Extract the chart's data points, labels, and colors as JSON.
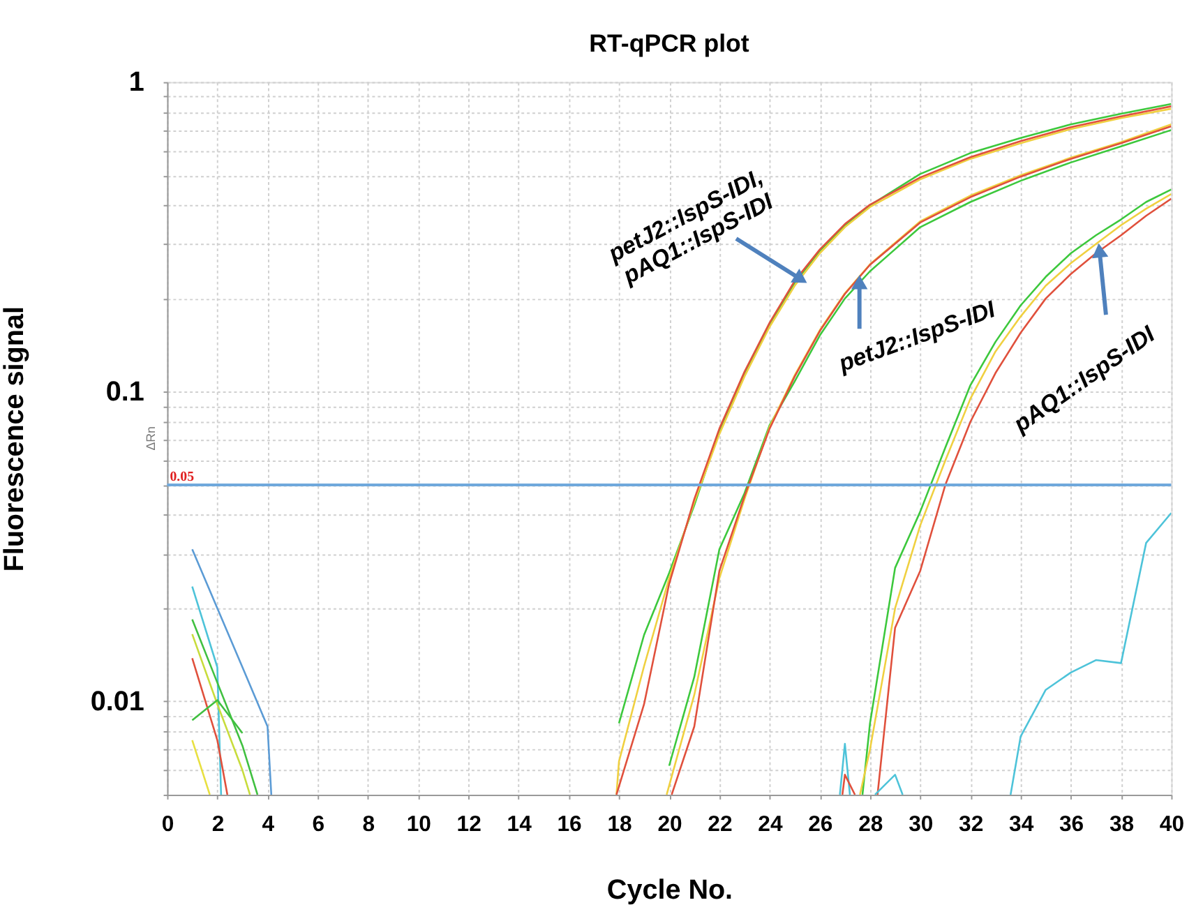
{
  "chart_data": {
    "type": "line",
    "title": "RT-qPCR plot",
    "xlabel": "Cycle No.",
    "ylabel": "Fluorescence signal",
    "xlim": [
      0,
      40
    ],
    "xticks": [
      0,
      2,
      4,
      6,
      8,
      10,
      12,
      14,
      16,
      18,
      20,
      22,
      24,
      26,
      28,
      30,
      32,
      34,
      36,
      38,
      40
    ],
    "ylim": [
      0.005,
      1
    ],
    "log": true,
    "grid": true,
    "legend": false,
    "yticks": [
      {
        "value": 0.005,
        "label": null
      },
      {
        "value": 0.006,
        "label": null
      },
      {
        "value": 0.007,
        "label": null
      },
      {
        "value": 0.008,
        "label": null
      },
      {
        "value": 0.009,
        "label": null
      },
      0.01,
      {
        "value": 0.02,
        "label": null
      },
      {
        "value": 0.03,
        "label": null
      },
      {
        "value": 0.04,
        "label": null
      },
      {
        "value": 0.05,
        "label": null
      },
      {
        "value": 0.06,
        "label": null
      },
      {
        "value": 0.07,
        "label": null
      },
      {
        "value": 0.08,
        "label": null
      },
      {
        "value": 0.09,
        "label": null
      },
      0.1,
      {
        "value": 0.2,
        "label": null
      },
      {
        "value": 0.3,
        "label": null
      },
      {
        "value": 0.4,
        "label": null
      },
      {
        "value": 0.5,
        "label": null
      },
      {
        "value": 0.6,
        "label": null
      },
      {
        "value": 0.7,
        "label": null
      },
      {
        "value": 0.8,
        "label": null
      },
      {
        "value": 0.9,
        "label": null
      },
      1
    ],
    "ref_lines": [
      {
        "axis": "y",
        "value": 0.05,
        "label": "0.05",
        "color": "#6fa8dc"
      }
    ],
    "annotations": [
      "ΔRn",
      {
        "text": "petJ2::IspS-IDI,\npAQ1::IspS-IDI",
        "x": 25.17,
        "y": 0.233
      },
      {
        "text": "petJ2::IspS-IDI",
        "x": 27.58,
        "y": 0.222
      },
      {
        "text": "pAQ1::IspS-IDI",
        "x": 37.15,
        "y": 0.281
      }
    ],
    "series": [
      {
        "color": "#5b9bd5",
        "x": [
          1,
          2,
          3,
          4,
          4.15
        ],
        "values": [
          0.031,
          0.02,
          0.0129,
          0.0083,
          0.005
        ]
      },
      {
        "color": "#4dc3d9",
        "x": [
          1,
          2,
          2.15
        ],
        "values": [
          0.0235,
          0.0129,
          0.005
        ]
      },
      {
        "color": "#40c040",
        "x": [
          1,
          2,
          3,
          3.6
        ],
        "values": [
          0.0184,
          0.0115,
          0.0072,
          0.005
        ]
      },
      {
        "color": "#c8dc3c",
        "x": [
          1,
          2,
          3,
          3.3
        ],
        "values": [
          0.0165,
          0.0098,
          0.006,
          0.005
        ]
      },
      {
        "color": "#e0503c",
        "x": [
          1,
          2,
          2.4
        ],
        "values": [
          0.0138,
          0.0075,
          0.005
        ]
      },
      {
        "color": "#40c040",
        "x": [
          1,
          2,
          3
        ],
        "values": [
          0.0087,
          0.0101,
          0.0079
        ]
      },
      {
        "color": "#e8e040",
        "x": [
          1,
          1.7
        ],
        "values": [
          0.0075,
          0.005
        ]
      },
      {
        "color": "#3cc83c",
        "x": [
          18,
          19,
          20,
          21,
          22,
          23,
          24,
          25,
          26,
          27,
          28,
          30,
          32,
          34,
          36,
          38,
          40
        ],
        "values": [
          0.0085,
          0.0164,
          0.026,
          0.043,
          0.075,
          0.115,
          0.165,
          0.225,
          0.285,
          0.345,
          0.4,
          0.505,
          0.59,
          0.66,
          0.73,
          0.79,
          0.85
        ]
      },
      {
        "color": "#f0d040",
        "x": [
          17.9,
          18,
          19,
          20,
          21,
          22,
          23,
          24,
          25,
          26,
          27,
          28,
          30,
          32,
          34,
          36,
          38,
          40
        ],
        "values": [
          0.005,
          0.0064,
          0.013,
          0.025,
          0.044,
          0.073,
          0.112,
          0.162,
          0.22,
          0.28,
          0.34,
          0.395,
          0.485,
          0.565,
          0.635,
          0.705,
          0.765,
          0.82
        ]
      },
      {
        "color": "#e0503c",
        "x": [
          17.9,
          19,
          20,
          21,
          22,
          23,
          24,
          25,
          26,
          27,
          28,
          30,
          32,
          34,
          36,
          38,
          40
        ],
        "values": [
          0.005,
          0.0098,
          0.024,
          0.045,
          0.076,
          0.116,
          0.167,
          0.228,
          0.288,
          0.348,
          0.402,
          0.492,
          0.572,
          0.645,
          0.715,
          0.775,
          0.835
        ]
      },
      {
        "color": "#3cc83c",
        "x": [
          20,
          21,
          22,
          23,
          24,
          25,
          26,
          27,
          28,
          30,
          32,
          34,
          36,
          38,
          40
        ],
        "values": [
          0.0062,
          0.012,
          0.031,
          0.047,
          0.078,
          0.108,
          0.152,
          0.2,
          0.245,
          0.34,
          0.41,
          0.48,
          0.55,
          0.62,
          0.7
        ]
      },
      {
        "color": "#f0d040",
        "x": [
          19.9,
          21,
          22,
          23,
          24,
          25,
          26,
          27,
          28,
          30,
          32,
          34,
          36,
          38,
          40
        ],
        "values": [
          0.005,
          0.0105,
          0.025,
          0.045,
          0.077,
          0.113,
          0.158,
          0.208,
          0.258,
          0.355,
          0.43,
          0.5,
          0.57,
          0.64,
          0.73
        ]
      },
      {
        "color": "#e0503c",
        "x": [
          20.1,
          21,
          22,
          23,
          24,
          25,
          26,
          27,
          28,
          30,
          32,
          34,
          36,
          38,
          40
        ],
        "values": [
          0.005,
          0.0083,
          0.0264,
          0.046,
          0.076,
          0.112,
          0.157,
          0.207,
          0.257,
          0.352,
          0.425,
          0.495,
          0.565,
          0.635,
          0.72
        ]
      },
      {
        "color": "#3cc83c",
        "x": [
          27.7,
          28,
          29,
          30,
          31,
          32,
          33,
          34,
          35,
          36,
          37,
          38,
          39,
          40
        ],
        "values": [
          0.005,
          0.0085,
          0.027,
          0.041,
          0.066,
          0.105,
          0.145,
          0.19,
          0.235,
          0.28,
          0.32,
          0.36,
          0.41,
          0.45
        ]
      },
      {
        "color": "#f0d040",
        "x": [
          27.6,
          28,
          29,
          30,
          31,
          32,
          33,
          34,
          35,
          36,
          37,
          38,
          39,
          40
        ],
        "values": [
          0.005,
          0.007,
          0.02,
          0.037,
          0.06,
          0.095,
          0.135,
          0.175,
          0.22,
          0.26,
          0.3,
          0.345,
          0.39,
          0.435
        ]
      },
      {
        "color": "#e0503c",
        "x": [
          28.3,
          29,
          30,
          31,
          32,
          33,
          34,
          35,
          36,
          37,
          38,
          39,
          40
        ],
        "values": [
          0.005,
          0.0173,
          0.0264,
          0.05,
          0.08,
          0.115,
          0.155,
          0.2,
          0.24,
          0.28,
          0.32,
          0.37,
          0.42
        ]
      },
      {
        "color": "#4dc3d9",
        "x": [
          26.8,
          27,
          27.2
        ],
        "values": [
          0.005,
          0.0073,
          0.005
        ]
      },
      {
        "color": "#e0503c",
        "x": [
          26.9,
          27,
          27.4
        ],
        "values": [
          0.005,
          0.0058,
          0.005
        ]
      },
      {
        "color": "#4dc3d9",
        "x": [
          28.2,
          29,
          29.3
        ],
        "values": [
          0.005,
          0.0058,
          0.005
        ]
      },
      {
        "color": "#4dc3d9",
        "x": [
          33.6,
          34,
          35,
          36,
          37,
          38,
          39,
          40
        ],
        "values": [
          0.005,
          0.0077,
          0.0109,
          0.0124,
          0.0136,
          0.0133,
          0.0325,
          0.0406
        ]
      }
    ]
  }
}
